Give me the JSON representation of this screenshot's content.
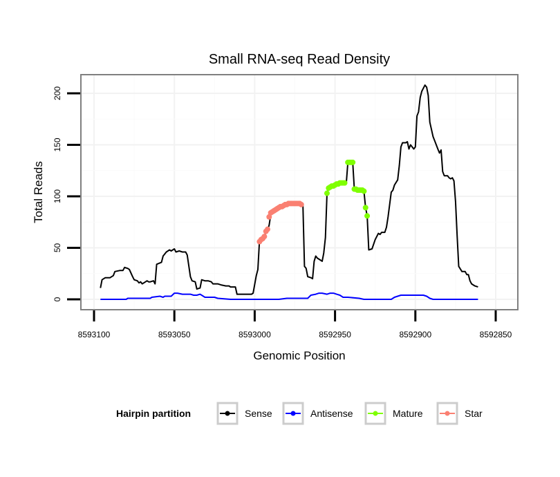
{
  "chart_data": {
    "type": "line",
    "title": "Small RNA-seq Read Density",
    "xlabel": "Genomic Position",
    "ylabel": "Total Reads",
    "xlim": [
      8593105,
      8592845
    ],
    "x_reversed": true,
    "ylim": [
      -10,
      219
    ],
    "x_ticks": [
      8593100,
      8593050,
      8593000,
      8592950,
      8592900,
      8592850
    ],
    "x_tick_labels": [
      "8593100",
      "8593050",
      "8593000",
      "8592950",
      "8592900",
      "8592850"
    ],
    "y_ticks": [
      0,
      50,
      100,
      150,
      200
    ],
    "y_tick_labels": [
      "0",
      "50",
      "100",
      "150",
      "200"
    ],
    "grid": true,
    "legend": {
      "title": "Hairpin partition",
      "placement": "bottom",
      "entries": [
        {
          "label": "Sense",
          "color": "#000000"
        },
        {
          "label": "Antisense",
          "color": "#0000ff"
        },
        {
          "label": "Mature",
          "color": "#7fff00"
        },
        {
          "label": "Star",
          "color": "#fa8072"
        }
      ]
    },
    "series": [
      {
        "name": "Sense",
        "color": "#000000",
        "markers": false,
        "points": [
          [
            8593096,
            11
          ],
          [
            8593095,
            19
          ],
          [
            8593093,
            21
          ],
          [
            8593090,
            21
          ],
          [
            8593088,
            23
          ],
          [
            8593087,
            27
          ],
          [
            8593084,
            28
          ],
          [
            8593082,
            28
          ],
          [
            8593081,
            31
          ],
          [
            8593079,
            30
          ],
          [
            8593078,
            29
          ],
          [
            8593076,
            22
          ],
          [
            8593075,
            19
          ],
          [
            8593073,
            18
          ],
          [
            8593072,
            16
          ],
          [
            8593071,
            17
          ],
          [
            8593070,
            15
          ],
          [
            8593068,
            17
          ],
          [
            8593067,
            18
          ],
          [
            8593066,
            17
          ],
          [
            8593065,
            17
          ],
          [
            8593063,
            18
          ],
          [
            8593062,
            15
          ],
          [
            8593061,
            34
          ],
          [
            8593058,
            36
          ],
          [
            8593057,
            42
          ],
          [
            8593055,
            46
          ],
          [
            8593053,
            48
          ],
          [
            8593052,
            47
          ],
          [
            8593050,
            49
          ],
          [
            8593049,
            46
          ],
          [
            8593047,
            47
          ],
          [
            8593045,
            46
          ],
          [
            8593043,
            46
          ],
          [
            8593042,
            43
          ],
          [
            8593040,
            22
          ],
          [
            8593039,
            18
          ],
          [
            8593037,
            17
          ],
          [
            8593036,
            10
          ],
          [
            8593034,
            11
          ],
          [
            8593033,
            19
          ],
          [
            8593031,
            18
          ],
          [
            8593029,
            18
          ],
          [
            8593027,
            17
          ],
          [
            8593026,
            15
          ],
          [
            8593023,
            15
          ],
          [
            8593021,
            14
          ],
          [
            8593018,
            13
          ],
          [
            8593016,
            13
          ],
          [
            8593015,
            12
          ],
          [
            8593012,
            12
          ],
          [
            8593011,
            5
          ],
          [
            8593004,
            5
          ],
          [
            8593002,
            5
          ],
          [
            8593001,
            6
          ],
          [
            8592999,
            23
          ],
          [
            8592998,
            29
          ],
          [
            8592997,
            58
          ],
          [
            8592995,
            59
          ],
          [
            8592994,
            62
          ],
          [
            8592992,
            67
          ],
          [
            8592991,
            72
          ],
          [
            8592990,
            82
          ],
          [
            8592988,
            84
          ],
          [
            8592986,
            86
          ],
          [
            8592984,
            88
          ],
          [
            8592982,
            90
          ],
          [
            8592980,
            91
          ],
          [
            8592978,
            92
          ],
          [
            8592976,
            93
          ],
          [
            8592973,
            94
          ],
          [
            8592970,
            93
          ],
          [
            8592969,
            32
          ],
          [
            8592968,
            30
          ],
          [
            8592967,
            22
          ],
          [
            8592965,
            21
          ],
          [
            8592964,
            20
          ],
          [
            8592963,
            37
          ],
          [
            8592962,
            42
          ],
          [
            8592961,
            40
          ],
          [
            8592959,
            38
          ],
          [
            8592958,
            37
          ],
          [
            8592957,
            45
          ],
          [
            8592956,
            60
          ],
          [
            8592955,
            103
          ],
          [
            8592954,
            108
          ],
          [
            8592952,
            110
          ],
          [
            8592950,
            111
          ],
          [
            8592948,
            112
          ],
          [
            8592946,
            113
          ],
          [
            8592944,
            114
          ],
          [
            8592943,
            113
          ],
          [
            8592942,
            133
          ],
          [
            8592939,
            133
          ],
          [
            8592938,
            107
          ],
          [
            8592936,
            106
          ],
          [
            8592934,
            106
          ],
          [
            8592932,
            105
          ],
          [
            8592931,
            89
          ],
          [
            8592930,
            81
          ],
          [
            8592929,
            48
          ],
          [
            8592927,
            49
          ],
          [
            8592925,
            58
          ],
          [
            8592923,
            64
          ],
          [
            8592922,
            63
          ],
          [
            8592921,
            65
          ],
          [
            8592919,
            65
          ],
          [
            8592918,
            70
          ],
          [
            8592917,
            80
          ],
          [
            8592915,
            104
          ],
          [
            8592914,
            106
          ],
          [
            8592913,
            111
          ],
          [
            8592911,
            116
          ],
          [
            8592910,
            130
          ],
          [
            8592909,
            148
          ],
          [
            8592908,
            152
          ],
          [
            8592906,
            152
          ],
          [
            8592905,
            153
          ],
          [
            8592904,
            146
          ],
          [
            8592903,
            150
          ],
          [
            8592901,
            146
          ],
          [
            8592900,
            148
          ],
          [
            8592899,
            178
          ],
          [
            8592898,
            182
          ],
          [
            8592897,
            196
          ],
          [
            8592896,
            202
          ],
          [
            8592894,
            208
          ],
          [
            8592893,
            206
          ],
          [
            8592892,
            198
          ],
          [
            8592891,
            172
          ],
          [
            8592889,
            158
          ],
          [
            8592888,
            154
          ],
          [
            8592887,
            150
          ],
          [
            8592886,
            146
          ],
          [
            8592885,
            142
          ],
          [
            8592884,
            145
          ],
          [
            8592883,
            124
          ],
          [
            8592882,
            120
          ],
          [
            8592880,
            120
          ],
          [
            8592879,
            118
          ],
          [
            8592878,
            117
          ],
          [
            8592877,
            118
          ],
          [
            8592876,
            115
          ],
          [
            8592875,
            95
          ],
          [
            8592874,
            62
          ],
          [
            8592873,
            32
          ],
          [
            8592871,
            27
          ],
          [
            8592869,
            27
          ],
          [
            8592868,
            24
          ],
          [
            8592867,
            24
          ],
          [
            8592866,
            18
          ],
          [
            8592865,
            15
          ],
          [
            8592863,
            13
          ],
          [
            8592861,
            12
          ]
        ]
      },
      {
        "name": "Antisense",
        "color": "#0000ff",
        "markers": false,
        "points": [
          [
            8593096,
            0
          ],
          [
            8593080,
            0
          ],
          [
            8593079,
            1
          ],
          [
            8593065,
            1
          ],
          [
            8593064,
            2
          ],
          [
            8593059,
            3
          ],
          [
            8593057,
            2
          ],
          [
            8593056,
            3
          ],
          [
            8593054,
            3
          ],
          [
            8593052,
            3
          ],
          [
            8593050,
            6
          ],
          [
            8593048,
            6
          ],
          [
            8593045,
            5
          ],
          [
            8593040,
            5
          ],
          [
            8593038,
            4
          ],
          [
            8593036,
            4
          ],
          [
            8593034,
            5
          ],
          [
            8593033,
            4
          ],
          [
            8593031,
            2
          ],
          [
            8593025,
            2
          ],
          [
            8593023,
            1
          ],
          [
            8593015,
            0
          ],
          [
            8592985,
            0
          ],
          [
            8592980,
            1
          ],
          [
            8592967,
            1
          ],
          [
            8592965,
            4
          ],
          [
            8592962,
            5
          ],
          [
            8592960,
            6
          ],
          [
            8592958,
            6
          ],
          [
            8592955,
            5
          ],
          [
            8592953,
            6
          ],
          [
            8592951,
            6
          ],
          [
            8592949,
            5
          ],
          [
            8592947,
            4
          ],
          [
            8592945,
            2
          ],
          [
            8592942,
            2
          ],
          [
            8592935,
            1
          ],
          [
            8592932,
            0
          ],
          [
            8592915,
            0
          ],
          [
            8592913,
            2
          ],
          [
            8592911,
            3
          ],
          [
            8592909,
            4
          ],
          [
            8592895,
            4
          ],
          [
            8592893,
            3
          ],
          [
            8592891,
            1
          ],
          [
            8592889,
            0
          ],
          [
            8592861,
            0
          ]
        ]
      },
      {
        "name": "Mature",
        "color": "#7fff00",
        "markers": true,
        "points": [
          [
            8592955,
            103
          ],
          [
            8592954,
            108
          ],
          [
            8592953,
            109
          ],
          [
            8592952,
            110
          ],
          [
            8592951,
            110
          ],
          [
            8592950,
            111
          ],
          [
            8592949,
            112
          ],
          [
            8592948,
            112
          ],
          [
            8592947,
            113
          ],
          [
            8592946,
            113
          ],
          [
            8592945,
            113
          ],
          [
            8592944,
            113
          ],
          [
            8592942,
            133
          ],
          [
            8592941,
            133
          ],
          [
            8592940,
            133
          ],
          [
            8592939,
            133
          ],
          [
            8592938,
            107
          ],
          [
            8592937,
            107
          ],
          [
            8592936,
            106
          ],
          [
            8592935,
            106
          ],
          [
            8592934,
            106
          ],
          [
            8592933,
            106
          ],
          [
            8592932,
            105
          ],
          [
            8592931,
            89
          ],
          [
            8592930,
            81
          ]
        ]
      },
      {
        "name": "Star",
        "color": "#fa8072",
        "markers": true,
        "points": [
          [
            8592997,
            56
          ],
          [
            8592996,
            58
          ],
          [
            8592995,
            59
          ],
          [
            8592994,
            61
          ],
          [
            8592993,
            66
          ],
          [
            8592992,
            68
          ],
          [
            8592991,
            80
          ],
          [
            8592990,
            84
          ],
          [
            8592989,
            85
          ],
          [
            8592988,
            86
          ],
          [
            8592987,
            87
          ],
          [
            8592986,
            88
          ],
          [
            8592985,
            89
          ],
          [
            8592984,
            90
          ],
          [
            8592983,
            90
          ],
          [
            8592982,
            91
          ],
          [
            8592981,
            92
          ],
          [
            8592980,
            92
          ],
          [
            8592979,
            93
          ],
          [
            8592978,
            93
          ],
          [
            8592977,
            93
          ],
          [
            8592976,
            93
          ],
          [
            8592975,
            93
          ],
          [
            8592974,
            93
          ],
          [
            8592973,
            93
          ],
          [
            8592972,
            93
          ],
          [
            8592971,
            92
          ]
        ]
      }
    ]
  }
}
